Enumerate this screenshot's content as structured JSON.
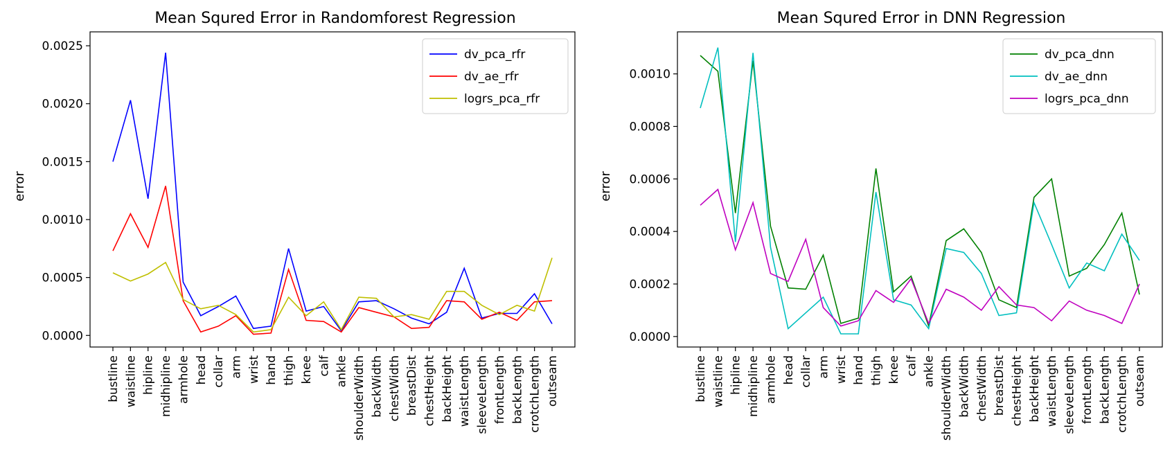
{
  "chart_data": [
    {
      "type": "line",
      "title": "Mean Squred Error in Randomforest Regression",
      "xlabel": "",
      "ylabel": "error",
      "ylim": [
        -0.0001,
        0.00262
      ],
      "yticks": [
        "0.0000",
        "0.0005",
        "0.0010",
        "0.0015",
        "0.0020",
        "0.0025"
      ],
      "ytick_values": [
        0,
        0.0005,
        0.001,
        0.0015,
        0.002,
        0.0025
      ],
      "legend_position": "top-right",
      "categories": [
        "bustline",
        "waistline",
        "hipline",
        "midhipline",
        "armhole",
        "head",
        "collar",
        "arm",
        "wrist",
        "hand",
        "thigh",
        "knee",
        "calf",
        "ankle",
        "shoulderWidth",
        "backWidth",
        "chestWidth",
        "breastDist",
        "chestHeight",
        "backHeight",
        "waistLength",
        "sleeveLength",
        "frontLength",
        "backLength",
        "crotchLength",
        "outseam"
      ],
      "series": [
        {
          "name": "dv_pca_rfr",
          "color": "#0000ff",
          "values": [
            0.0015,
            0.00203,
            0.00118,
            0.00244,
            0.00046,
            0.00017,
            0.00025,
            0.00034,
            6e-05,
            8e-05,
            0.00075,
            0.00021,
            0.00025,
            4e-05,
            0.00029,
            0.0003,
            0.00023,
            0.00015,
            0.0001,
            0.0002,
            0.00058,
            0.00015,
            0.00019,
            0.00019,
            0.00036,
            0.0001
          ]
        },
        {
          "name": "dv_ae_rfr",
          "color": "#ff0000",
          "values": [
            0.00073,
            0.00105,
            0.00076,
            0.00129,
            0.0003,
            3e-05,
            8e-05,
            0.00017,
            1e-05,
            2e-05,
            0.00057,
            0.00013,
            0.00012,
            3e-05,
            0.00024,
            0.0002,
            0.00016,
            6e-05,
            7e-05,
            0.0003,
            0.00029,
            0.00014,
            0.0002,
            0.00013,
            0.00029,
            0.0003
          ]
        },
        {
          "name": "logrs_pca_rfr",
          "color": "#bfbf00",
          "values": [
            0.00054,
            0.00047,
            0.00053,
            0.00063,
            0.00031,
            0.00023,
            0.00026,
            0.00018,
            3e-05,
            5e-05,
            0.00033,
            0.00017,
            0.00029,
            5e-05,
            0.00033,
            0.00032,
            0.00016,
            0.00018,
            0.00014,
            0.00038,
            0.00038,
            0.00026,
            0.00018,
            0.00026,
            0.00021,
            0.00067
          ]
        }
      ]
    },
    {
      "type": "line",
      "title": "Mean Squred Error in DNN Regression",
      "xlabel": "",
      "ylabel": "error",
      "ylim": [
        -4e-05,
        0.00116
      ],
      "yticks": [
        "0.0000",
        "0.0002",
        "0.0004",
        "0.0006",
        "0.0008",
        "0.0010"
      ],
      "ytick_values": [
        0,
        0.0002,
        0.0004,
        0.0006,
        0.0008,
        0.001
      ],
      "legend_position": "top-right",
      "categories": [
        "bustline",
        "waistline",
        "hipline",
        "midhipline",
        "armhole",
        "head",
        "collar",
        "arm",
        "wrist",
        "hand",
        "thigh",
        "knee",
        "calf",
        "ankle",
        "shoulderWidth",
        "backWidth",
        "chestWidth",
        "breastDist",
        "chestHeight",
        "backHeight",
        "waistLength",
        "sleeveLength",
        "frontLength",
        "backLength",
        "crotchLength",
        "outseam"
      ],
      "series": [
        {
          "name": "dv_pca_dnn",
          "color": "#008000",
          "values": [
            0.00107,
            0.00101,
            0.00047,
            0.00105,
            0.00042,
            0.000185,
            0.00018,
            0.00031,
            5e-05,
            7e-05,
            0.00064,
            0.00017,
            0.00023,
            4e-05,
            0.000365,
            0.00041,
            0.00032,
            0.00014,
            0.00011,
            0.00053,
            0.0006,
            0.00023,
            0.00026,
            0.00035,
            0.00047,
            0.00016
          ]
        },
        {
          "name": "dv_ae_dnn",
          "color": "#00bfbf",
          "values": [
            0.00087,
            0.0011,
            0.00036,
            0.00108,
            0.00034,
            3e-05,
            9e-05,
            0.00015,
            1e-05,
            1e-05,
            0.00055,
            0.00014,
            0.00012,
            3e-05,
            0.000335,
            0.00032,
            0.00024,
            8e-05,
            9e-05,
            0.00051,
            0.00035,
            0.000185,
            0.00028,
            0.00025,
            0.00039,
            0.00029
          ]
        },
        {
          "name": "logrs_pca_dnn",
          "color": "#bf00bf",
          "values": [
            0.0005,
            0.00056,
            0.00033,
            0.00051,
            0.00024,
            0.00021,
            0.00037,
            0.00011,
            4e-05,
            6e-05,
            0.000175,
            0.00013,
            0.00022,
            5e-05,
            0.00018,
            0.00015,
            0.0001,
            0.00019,
            0.00012,
            0.00011,
            6e-05,
            0.000135,
            0.0001,
            8e-05,
            5e-05,
            0.0002
          ]
        }
      ]
    }
  ]
}
